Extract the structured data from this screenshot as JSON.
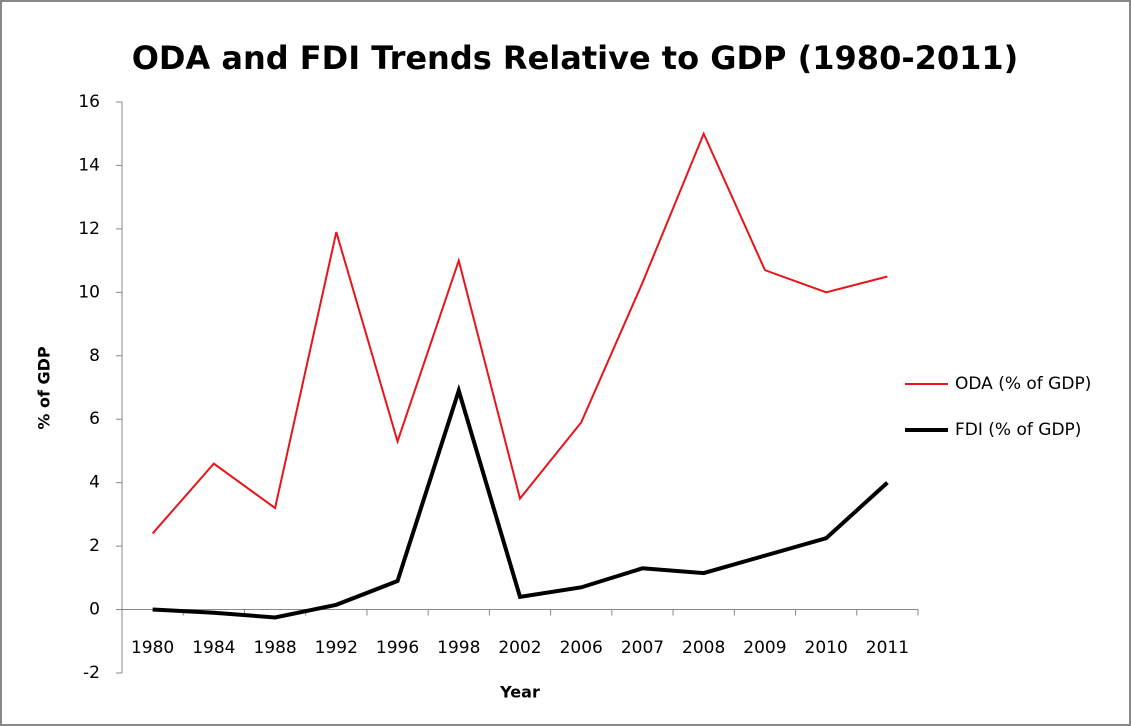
{
  "chart_data": {
    "type": "line",
    "title": "ODA and FDI Trends Relative to GDP (1980-2011)",
    "x_label": "Year",
    "y_label": "% of GDP",
    "categories": [
      "1980",
      "1984",
      "1988",
      "1992",
      "1996",
      "1998",
      "2002",
      "2006",
      "2007",
      "2008",
      "2009",
      "2010",
      "2011"
    ],
    "series": [
      {
        "name": "ODA (% of GDP)",
        "color": "#e8141b",
        "width": 2,
        "values": [
          2.4,
          4.6,
          3.2,
          11.9,
          5.3,
          11.0,
          3.5,
          5.9,
          10.3,
          15.0,
          10.7,
          10.0,
          10.5
        ]
      },
      {
        "name": "FDI (% of GDP)",
        "color": "#000000",
        "width": 4,
        "values": [
          0.0,
          -0.1,
          -0.25,
          0.15,
          0.9,
          6.9,
          0.4,
          0.7,
          1.3,
          1.15,
          1.7,
          2.25,
          4.0
        ]
      }
    ],
    "ylim": [
      -2,
      16
    ],
    "yticks": [
      -2,
      0,
      2,
      4,
      6,
      8,
      10,
      12,
      14,
      16
    ],
    "grid": false,
    "legend": "right"
  }
}
